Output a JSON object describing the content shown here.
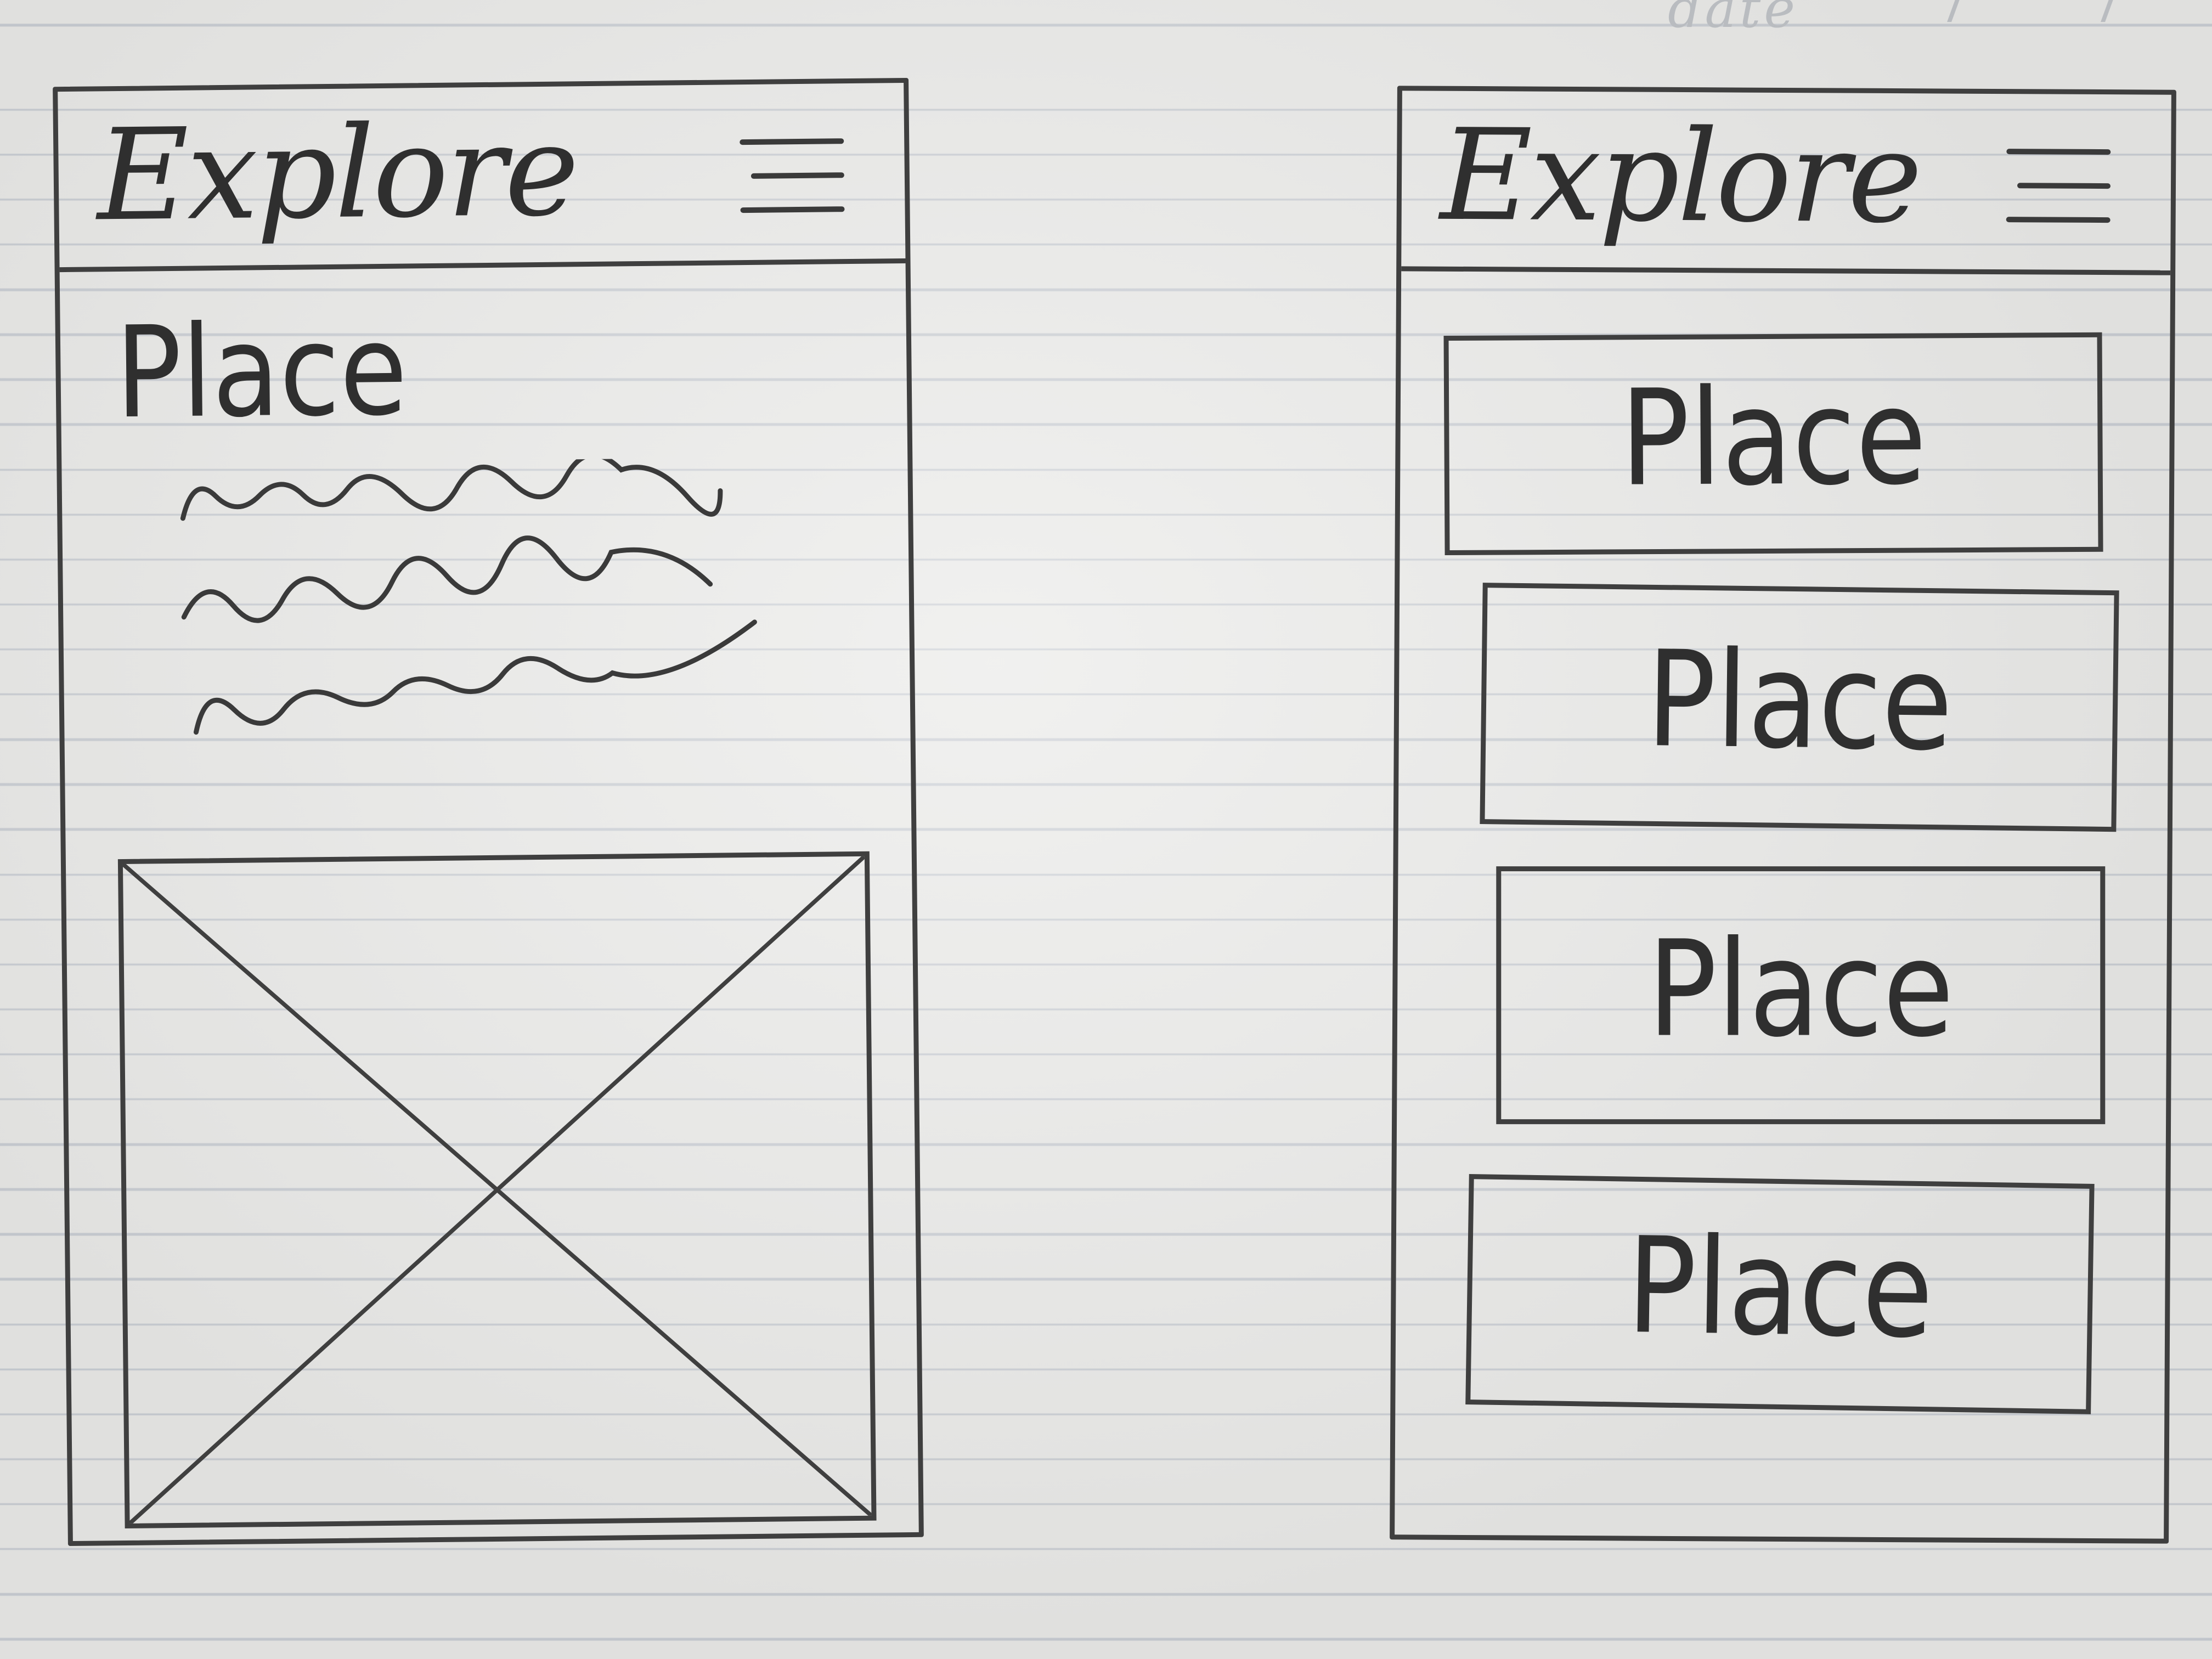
{
  "notebook": {
    "date_label": "date"
  },
  "detail_screen": {
    "header": {
      "title": "Explore",
      "menu_icon": "hamburger-menu-icon"
    },
    "place_title": "Place",
    "text_placeholder_lines": 3,
    "image_placeholder_icon": "image-placeholder-x"
  },
  "list_screen": {
    "header": {
      "title": "Explore",
      "menu_icon": "hamburger-menu-icon"
    },
    "cards": [
      {
        "label": "Place"
      },
      {
        "label": "Place"
      },
      {
        "label": "Place"
      },
      {
        "label": "Place"
      }
    ]
  },
  "colors": {
    "paper": "#e9e9e7",
    "ruled_line": "#c9cdd3",
    "pencil": "#3f3f3f"
  }
}
